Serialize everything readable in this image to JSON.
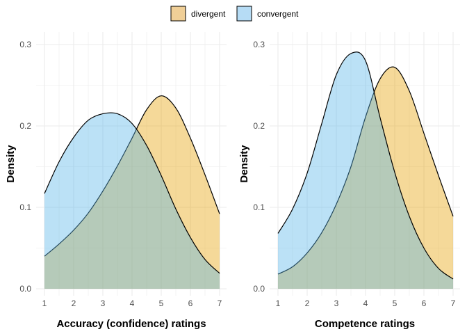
{
  "legend": {
    "items": [
      {
        "label": "divergent",
        "color": "#e69f00"
      },
      {
        "label": "convergent",
        "color": "#56b4e9"
      }
    ]
  },
  "chart_data": [
    {
      "type": "area",
      "xlabel": "Accuracy (confidence) ratings",
      "ylabel": "Density",
      "xlim": [
        1,
        7
      ],
      "ylim": [
        0,
        0.3
      ],
      "x_ticks": [
        1,
        2,
        3,
        4,
        5,
        6,
        7
      ],
      "y_ticks": [
        "0.0",
        "0.1",
        "0.2",
        "0.3"
      ],
      "grid": true,
      "legend_position": "top",
      "series": [
        {
          "name": "divergent",
          "color": "#e69f00",
          "x": [
            1,
            1.5,
            2,
            2.5,
            3,
            3.5,
            4,
            4.5,
            5,
            5.5,
            6,
            6.5,
            7
          ],
          "y": [
            0.04,
            0.055,
            0.072,
            0.093,
            0.12,
            0.151,
            0.185,
            0.22,
            0.237,
            0.222,
            0.185,
            0.14,
            0.092
          ]
        },
        {
          "name": "convergent",
          "color": "#56b4e9",
          "x": [
            1,
            1.5,
            2,
            2.5,
            3,
            3.5,
            4,
            4.5,
            5,
            5.5,
            6,
            6.5,
            7
          ],
          "y": [
            0.117,
            0.156,
            0.186,
            0.207,
            0.215,
            0.215,
            0.203,
            0.176,
            0.139,
            0.098,
            0.063,
            0.036,
            0.019
          ]
        }
      ]
    },
    {
      "type": "area",
      "xlabel": "Competence ratings",
      "ylabel": "Density",
      "xlim": [
        1,
        7
      ],
      "ylim": [
        0,
        0.3
      ],
      "x_ticks": [
        1,
        2,
        3,
        4,
        5,
        6,
        7
      ],
      "y_ticks": [
        "0.0",
        "0.1",
        "0.2",
        "0.3"
      ],
      "grid": true,
      "legend_position": "top",
      "series": [
        {
          "name": "divergent",
          "color": "#e69f00",
          "x": [
            1,
            1.5,
            2,
            2.5,
            3,
            3.5,
            4,
            4.5,
            5,
            5.5,
            6,
            6.5,
            7
          ],
          "y": [
            0.018,
            0.027,
            0.044,
            0.069,
            0.104,
            0.15,
            0.211,
            0.258,
            0.272,
            0.243,
            0.191,
            0.139,
            0.089
          ]
        },
        {
          "name": "convergent",
          "color": "#56b4e9",
          "x": [
            1,
            1.5,
            2,
            2.5,
            3,
            3.5,
            4,
            4.5,
            5,
            5.5,
            6,
            6.5,
            7
          ],
          "y": [
            0.068,
            0.098,
            0.142,
            0.203,
            0.263,
            0.289,
            0.28,
            0.21,
            0.143,
            0.089,
            0.05,
            0.025,
            0.012
          ]
        }
      ]
    }
  ]
}
